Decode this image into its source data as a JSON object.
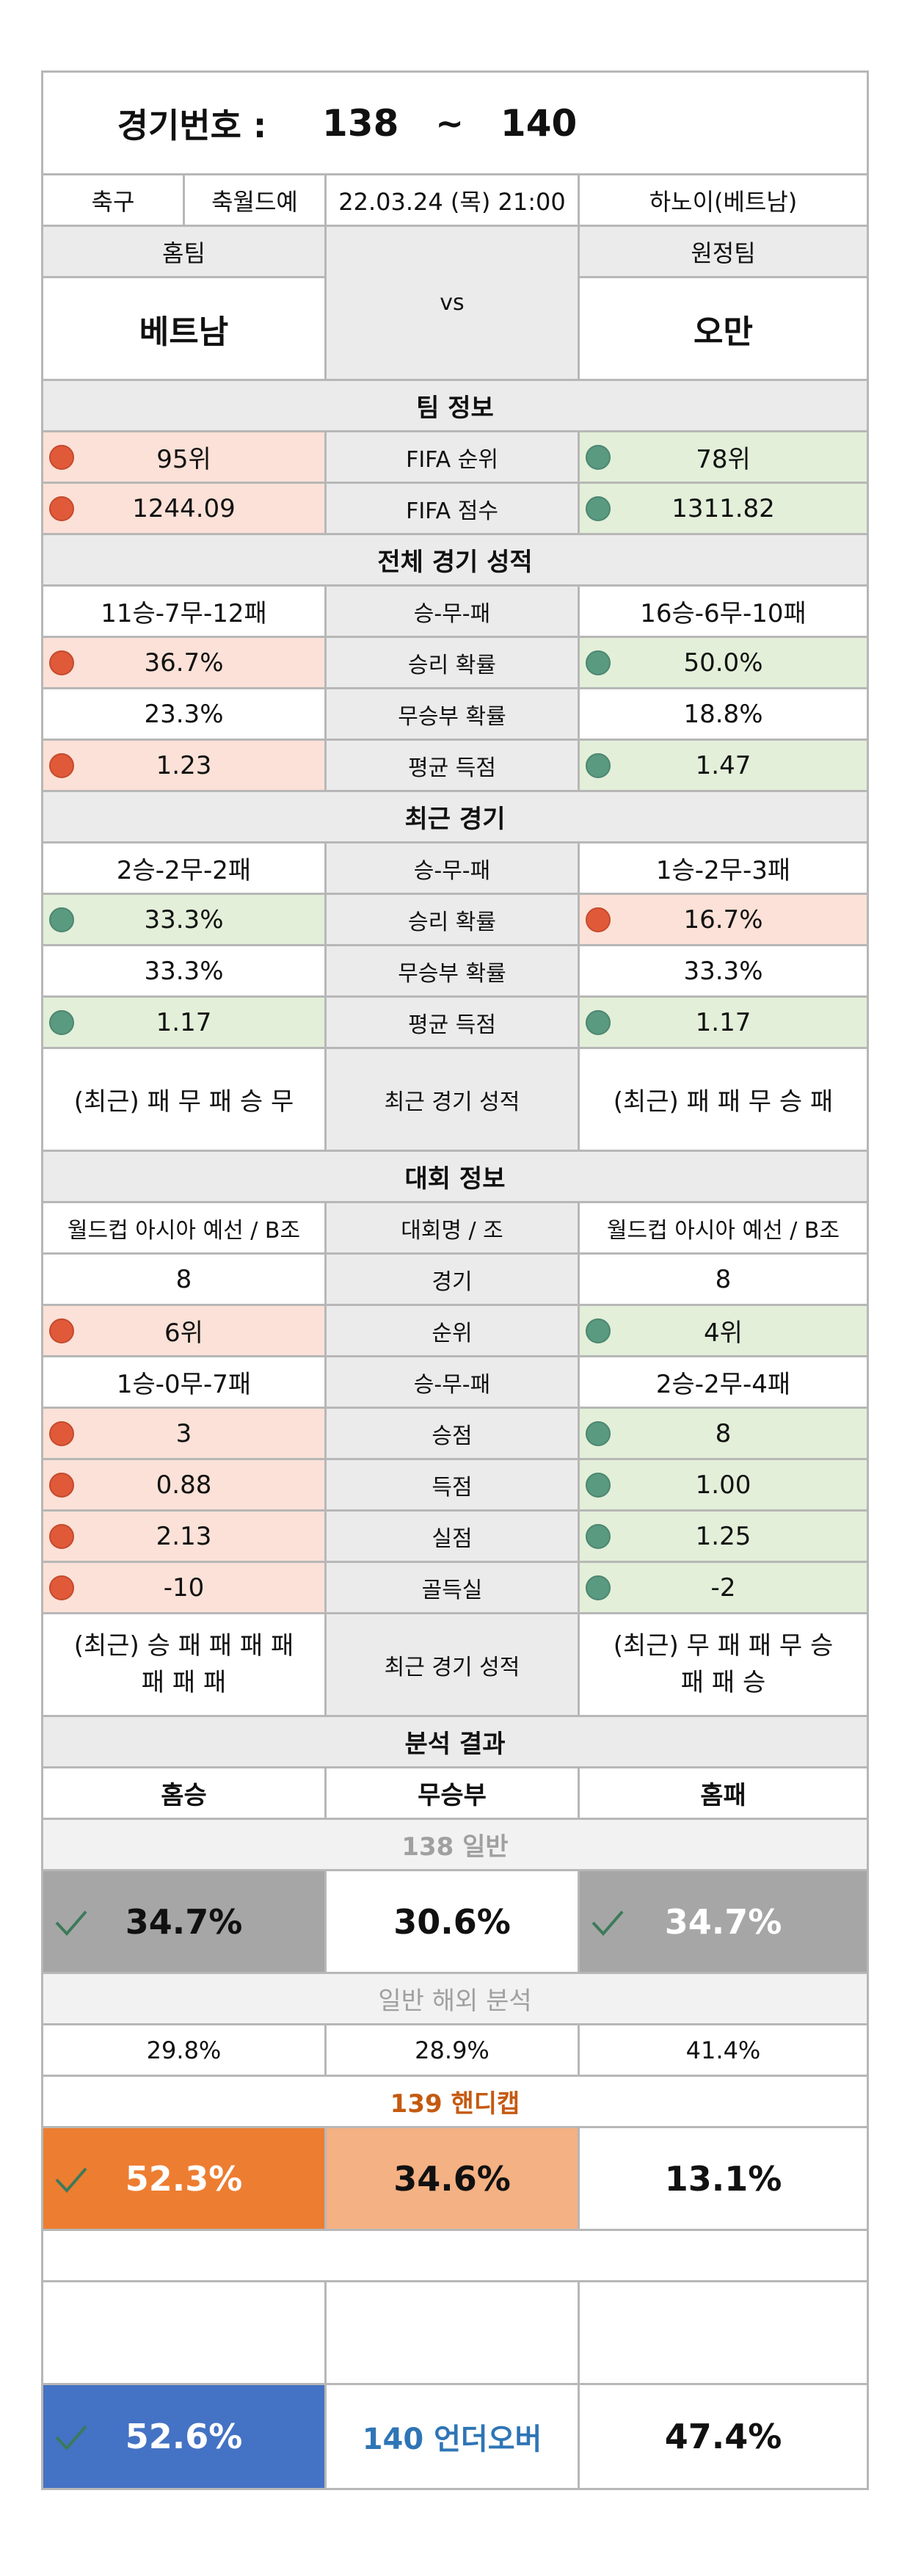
{
  "header": {
    "label": "경기번호 :",
    "start": "138",
    "tilde": "~",
    "end": "140"
  },
  "info": {
    "sport": "축구",
    "league": "축월드예",
    "datetime": "22.03.24 (목) 21:00",
    "venue": "하노이(베트남)"
  },
  "teams": {
    "home_label": "홈팀",
    "away_label": "원정팀",
    "vs": "vs",
    "home": "베트남",
    "away": "오만"
  },
  "team_info": {
    "title": "팀 정보",
    "rows": [
      {
        "label": "FIFA 순위",
        "home": "95위",
        "away": "78위"
      },
      {
        "label": "FIFA 점수",
        "home": "1244.09",
        "away": "1311.82"
      }
    ]
  },
  "overall": {
    "title": "전체 경기 성적",
    "rows": [
      {
        "label": "승-무-패",
        "home": "11승-7무-12패",
        "away": "16승-6무-10패"
      },
      {
        "label": "승리 확률",
        "home": "36.7%",
        "away": "50.0%"
      },
      {
        "label": "무승부 확률",
        "home": "23.3%",
        "away": "18.8%"
      },
      {
        "label": "평균 득점",
        "home": "1.23",
        "away": "1.47"
      }
    ]
  },
  "recent": {
    "title": "최근 경기",
    "rows": [
      {
        "label": "승-무-패",
        "home": "2승-2무-2패",
        "away": "1승-2무-3패"
      },
      {
        "label": "승리 확률",
        "home": "33.3%",
        "away": "16.7%"
      },
      {
        "label": "무승부 확률",
        "home": "33.3%",
        "away": "33.3%"
      },
      {
        "label": "평균 득점",
        "home": "1.17",
        "away": "1.17"
      },
      {
        "label": "최근 경기 성적",
        "home": "(최근) 패 무 패 승 무",
        "away": "(최근) 패 패 무 승 패"
      }
    ]
  },
  "tournament": {
    "title": "대회 정보",
    "rows": [
      {
        "label": "대회명 / 조",
        "home": "월드컵 아시아 예선 / B조",
        "away": "월드컵 아시아 예선 / B조"
      },
      {
        "label": "경기",
        "home": "8",
        "away": "8"
      },
      {
        "label": "순위",
        "home": "6위",
        "away": "4위"
      },
      {
        "label": "승-무-패",
        "home": "1승-0무-7패",
        "away": "2승-2무-4패"
      },
      {
        "label": "승점",
        "home": "3",
        "away": "8"
      },
      {
        "label": "득점",
        "home": "0.88",
        "away": "1.00"
      },
      {
        "label": "실점",
        "home": "2.13",
        "away": "1.25"
      },
      {
        "label": "골득실",
        "home": "-10",
        "away": "-2"
      },
      {
        "label": "최근 경기 성적",
        "home_line1": "(최근) 승 패 패 패 패",
        "home_line2": "패 패 패",
        "away_line1": "(최근) 무 패 패 무 승",
        "away_line2": "패 패 승"
      }
    ]
  },
  "analysis": {
    "title": "분석 결과",
    "headers": {
      "win": "홈승",
      "draw": "무승부",
      "lose": "홈패"
    },
    "general": {
      "title": "138 일반",
      "win": "34.7%",
      "draw": "30.6%",
      "lose": "34.7%"
    },
    "overseas": {
      "title": "일반 해외 분석",
      "win": "29.8%",
      "draw": "28.9%",
      "lose": "41.4%"
    },
    "handicap": {
      "title": "139 핸디캡",
      "win": "52.3%",
      "draw": "34.6%",
      "lose": "13.1%"
    },
    "underover": {
      "title": "140 언더오버",
      "under": "52.6%",
      "over": "47.4%"
    }
  },
  "colors": {
    "border": "#b7b7b7",
    "gray": "#ebebeb",
    "red_bg": "#fbe1d7",
    "green_bg": "#e3efd9",
    "red_dot": "#e05a3a",
    "green_dot": "#5a9a80",
    "orange": "#ed7d31",
    "peach": "#f4b183",
    "blue": "#4472c4",
    "dark_gray": "#a6a6a6",
    "title_gray": "#a0a0a0",
    "orange_text": "#c55a11",
    "blue_text": "#2e75b6"
  }
}
